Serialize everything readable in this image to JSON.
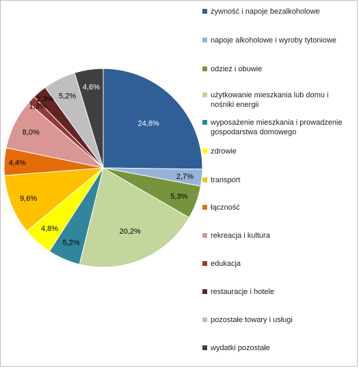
{
  "chart_data": {
    "type": "pie",
    "title": "",
    "categories": [
      "żywność i napoje bezalkoholowe",
      "napoje alkoholowe i wyroby tytoniowe",
      "odzież i obuwie",
      "użytkowanie mieszkania lub domu i nośniki energii",
      "wyposażenie mieszkania i prowadzenie gospodarstwa domowego",
      "zdrowie",
      "transport",
      "łączność",
      "rekreacja i kultura",
      "edukacja",
      "restauracje i hotele",
      "pozostałe towary i usługi",
      "wydatki pozostałe"
    ],
    "legend_lines": [
      [
        "żywność i napoje bezalkoholowe"
      ],
      [
        "napoje alkoholowe i wyroby tytoniowe"
      ],
      [
        "odzież i obuwie"
      ],
      [
        "użytkowanie mieszkania lub domu i",
        "nośniki energii"
      ],
      [
        "wyposażenie mieszkania i prowadzenie",
        "gospodarstwa domowego"
      ],
      [
        "zdrowie"
      ],
      [
        "transport"
      ],
      [
        "łączność"
      ],
      [
        "rekreacja i kultura"
      ],
      [
        "edukacja"
      ],
      [
        "restauracje i hotele"
      ],
      [
        "pozostałe towary i usługi"
      ],
      [
        "wydatki pozostałe"
      ]
    ],
    "values": [
      24.8,
      2.7,
      5.3,
      20.2,
      5.2,
      4.8,
      9.6,
      4.4,
      8.0,
      1.3,
      2.3,
      5.2,
      4.6
    ],
    "labels": [
      "24,8%",
      "2,7%",
      "5,3%",
      "20,2%",
      "5,2%",
      "4,8%",
      "9,6%",
      "4,4%",
      "8,0%",
      "1,3%",
      "2,3%",
      "5,2%",
      "4,6%"
    ],
    "colors": [
      "#2f5f96",
      "#95b3d7",
      "#77933c",
      "#c3d69b",
      "#31859c",
      "#ffff00",
      "#ffc000",
      "#e36c09",
      "#d99694",
      "#953735",
      "#632523",
      "#bfbfbf",
      "#404040"
    ],
    "label_colors": [
      "#ffffff",
      "#000000",
      "#000000",
      "#000000",
      "#000000",
      "#000000",
      "#000000",
      "#000000",
      "#000000",
      "#000000",
      "#000000",
      "#000000",
      "#ffffff"
    ],
    "start_angle": "12 o'clock",
    "direction": "clockwise",
    "legend_position": "right"
  }
}
